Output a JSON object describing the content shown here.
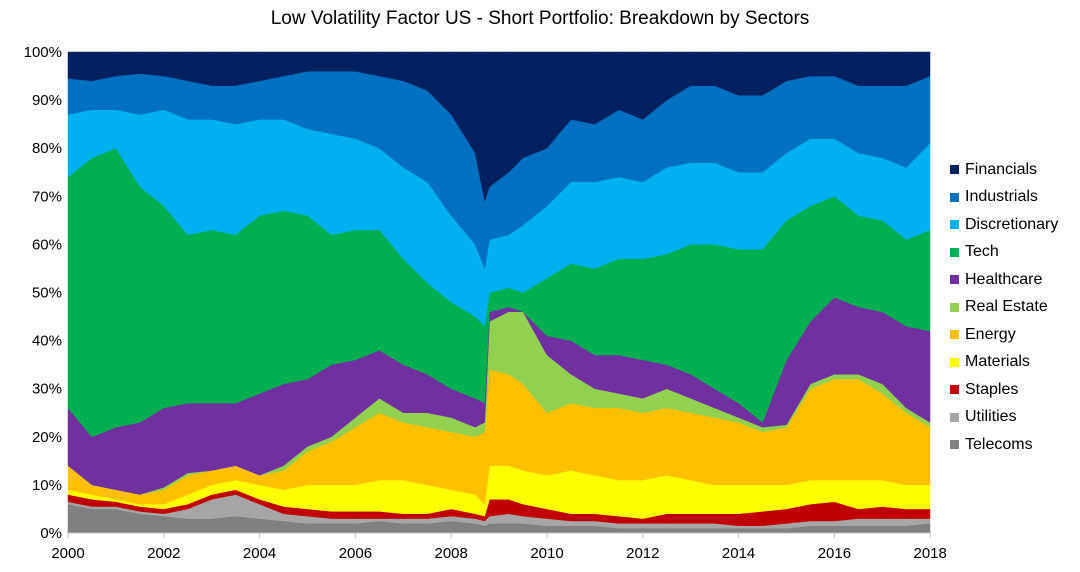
{
  "chart_data": {
    "type": "area",
    "stacked": true,
    "title": "Low Volatility Factor US - Short Portfolio: Breakdown by Sectors",
    "xlabel": "",
    "ylabel": "",
    "xlim": [
      2000,
      2018.1
    ],
    "ylim": [
      0,
      100
    ],
    "x_ticks": [
      "2000",
      "2002",
      "2004",
      "2006",
      "2008",
      "2010",
      "2012",
      "2014",
      "2016",
      "2018"
    ],
    "y_ticks": [
      "0%",
      "10%",
      "20%",
      "30%",
      "40%",
      "50%",
      "60%",
      "70%",
      "80%",
      "90%",
      "100%"
    ],
    "legend_position": "right",
    "grid": false,
    "x": [
      2000,
      2000.5,
      2001,
      2001.5,
      2002,
      2002.5,
      2003,
      2003.5,
      2004,
      2004.5,
      2005,
      2005.5,
      2006,
      2006.5,
      2007,
      2007.5,
      2008,
      2008.5,
      2008.7,
      2008.8,
      2009.2,
      2009.5,
      2010,
      2010.5,
      2011,
      2011.5,
      2012,
      2012.5,
      2013,
      2013.5,
      2014,
      2014.5,
      2015,
      2015.5,
      2016,
      2016.5,
      2017,
      2017.5,
      2018.1
    ],
    "series": [
      {
        "name": "Telecoms",
        "color": "#808080",
        "values": [
          6,
          5,
          5,
          4,
          3.5,
          3,
          3,
          3.5,
          3,
          2.5,
          2,
          2,
          2,
          2.5,
          2,
          2,
          2.5,
          2,
          1.5,
          2,
          2,
          2,
          1.5,
          1.5,
          1.5,
          1,
          1,
          1,
          1,
          1,
          1,
          1,
          1,
          1.5,
          1.5,
          1.5,
          1.5,
          1.5,
          2
        ]
      },
      {
        "name": "Utilities",
        "color": "#A6A6A6",
        "values": [
          0.5,
          0.5,
          0.5,
          0.5,
          0.5,
          2,
          4,
          4.5,
          3,
          1.5,
          1.5,
          1,
          1,
          0.5,
          1,
          1,
          1,
          1,
          1,
          1.5,
          2,
          1.5,
          1.5,
          1,
          1,
          1,
          1,
          1,
          1,
          1,
          0.5,
          0.5,
          1,
          1,
          1,
          1.5,
          1.5,
          1.5,
          1
        ]
      },
      {
        "name": "Staples",
        "color": "#C00000",
        "values": [
          1.5,
          1.5,
          1,
          1,
          1,
          1,
          1,
          1,
          1,
          1.5,
          1.5,
          1.5,
          1.5,
          1.5,
          1,
          1,
          1.5,
          1,
          1,
          3.5,
          3,
          2.5,
          2,
          1.5,
          1.5,
          1.5,
          1,
          2,
          2,
          2,
          2.5,
          3,
          3,
          3.5,
          4,
          2,
          2.5,
          2,
          2
        ]
      },
      {
        "name": "Materials",
        "color": "#FFFF00",
        "values": [
          1,
          1,
          0.5,
          0.5,
          1,
          2,
          2,
          2,
          3,
          3.5,
          5,
          5.5,
          5.5,
          6.5,
          7,
          6,
          4,
          4,
          2.5,
          7,
          7,
          7,
          7,
          9,
          8,
          7.5,
          8,
          8,
          7,
          6,
          6,
          5.5,
          5,
          5,
          4.5,
          6,
          5.5,
          5,
          5
        ]
      },
      {
        "name": "Energy",
        "color": "#FFC000",
        "values": [
          5,
          2,
          2,
          2,
          3,
          4,
          3,
          3,
          2,
          4,
          7,
          9,
          12,
          14,
          12,
          12,
          12,
          12,
          15,
          20,
          19,
          18,
          13,
          14,
          14,
          15,
          14,
          14,
          14,
          14,
          13,
          11,
          12,
          19,
          21,
          21,
          18,
          15,
          12
        ]
      },
      {
        "name": "Real Estate",
        "color": "#92D050",
        "values": [
          0,
          0,
          0,
          0,
          0.5,
          0.5,
          0,
          0,
          0,
          1,
          1,
          1,
          2,
          3,
          2,
          3,
          3,
          2,
          2,
          10,
          13,
          15,
          12,
          6,
          4,
          3,
          3,
          4,
          3,
          2,
          1,
          1,
          0.5,
          1,
          1,
          1,
          2,
          1,
          1
        ]
      },
      {
        "name": "Healthcare",
        "color": "#7030A0",
        "values": [
          12,
          10,
          13,
          15,
          16.5,
          14.5,
          14,
          13,
          17,
          17,
          14,
          15,
          12,
          10,
          10,
          8,
          6,
          6,
          4,
          2,
          1,
          0,
          4,
          7,
          7,
          8,
          8,
          5,
          5,
          4,
          3,
          1,
          13.5,
          13,
          16,
          14,
          15,
          17,
          19
        ]
      },
      {
        "name": "Tech",
        "color": "#00B050",
        "values": [
          48,
          58,
          58,
          49,
          42,
          35,
          36,
          35,
          37,
          36,
          34,
          27,
          27,
          25,
          22,
          19,
          18,
          17,
          16,
          4,
          4,
          4,
          12,
          16,
          18,
          20,
          21,
          23,
          27,
          30,
          32,
          36,
          29,
          24,
          21,
          19,
          19,
          18,
          21
        ]
      },
      {
        "name": "Discretionary",
        "color": "#00B0F0",
        "values": [
          13,
          10,
          8,
          15,
          20,
          24,
          23,
          23,
          20,
          19,
          18,
          21,
          19,
          17,
          19,
          21,
          18,
          15,
          12,
          11,
          11,
          14,
          15,
          17,
          18,
          17,
          16,
          18,
          17,
          17,
          16,
          16,
          14,
          14,
          12,
          13,
          13,
          15,
          18
        ]
      },
      {
        "name": "Industrials",
        "color": "#0070C0",
        "values": [
          7.5,
          6,
          7,
          8.5,
          7,
          8,
          7,
          8,
          8,
          9,
          12,
          13,
          14,
          15,
          18,
          19,
          21,
          19,
          14,
          11,
          13,
          14,
          12,
          13,
          12,
          14,
          13,
          14,
          16,
          16,
          16,
          16,
          15,
          13,
          13,
          14,
          15,
          17,
          14
        ]
      },
      {
        "name": "Financials",
        "color": "#002060",
        "values": [
          5.5,
          6,
          5,
          4.5,
          5,
          6,
          7,
          7,
          6,
          5,
          4,
          4,
          4,
          5,
          6,
          8,
          13,
          21,
          31,
          28,
          25,
          22,
          20,
          14,
          15,
          12,
          14,
          10,
          7,
          7,
          9,
          9,
          6,
          5,
          5,
          7,
          7,
          7,
          5
        ]
      }
    ]
  }
}
